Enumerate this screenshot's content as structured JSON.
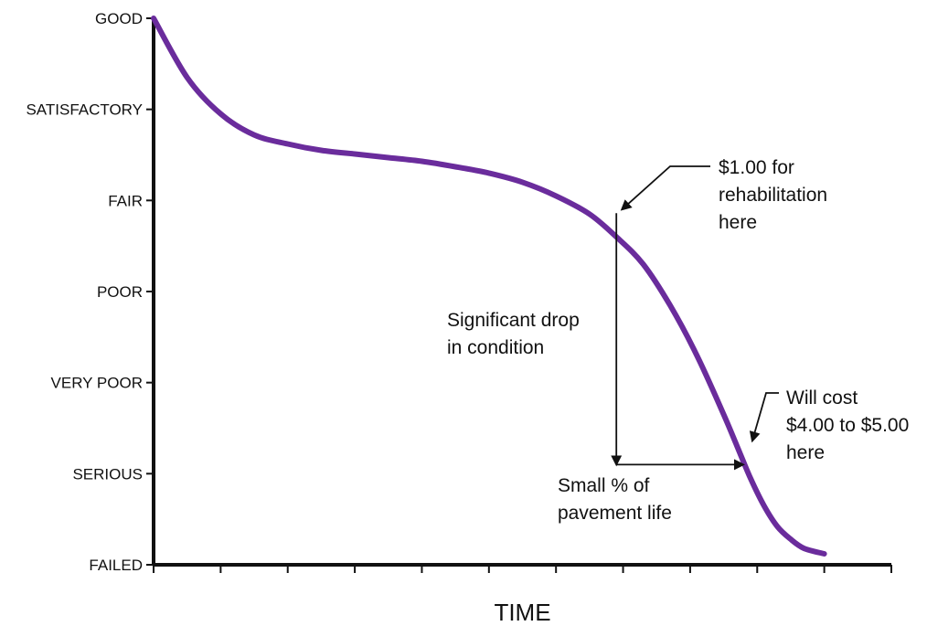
{
  "chart_data": {
    "type": "line",
    "title": "",
    "xlabel": "TIME",
    "ylabel": "",
    "y_categories": [
      "FAILED",
      "SERIOUS",
      "VERY POOR",
      "POOR",
      "FAIR",
      "SATISFACTORY",
      "GOOD"
    ],
    "ylim": [
      0,
      6
    ],
    "xlim": [
      0,
      11
    ],
    "x_tick_count": 12,
    "grid": false,
    "legend": "none",
    "line_color": "#6a2c9c",
    "series": [
      {
        "x": [
          0,
          0.5,
          1,
          1.5,
          2,
          2.5,
          3,
          3.5,
          4,
          4.5,
          5,
          5.5,
          6,
          6.5,
          6.9,
          7.3,
          7.7,
          8.1,
          8.5,
          8.7,
          8.9,
          9.1,
          9.3,
          9.5,
          9.7,
          10
        ],
        "y": [
          6,
          5.35,
          4.95,
          4.72,
          4.62,
          4.55,
          4.51,
          4.47,
          4.43,
          4.37,
          4.3,
          4.2,
          4.05,
          3.85,
          3.6,
          3.3,
          2.85,
          2.3,
          1.65,
          1.3,
          0.95,
          0.65,
          0.42,
          0.28,
          0.18,
          0.12
        ]
      }
    ],
    "annotations": [
      {
        "id": "rehab",
        "lines": [
          "$1.00 for",
          "rehabilitation",
          "here"
        ],
        "point_x": 6.9,
        "point_y": 3.86
      },
      {
        "id": "drop",
        "lines": [
          "Significant drop",
          "in condition"
        ],
        "from_y": 3.86,
        "to_y": 1.1
      },
      {
        "id": "life",
        "lines": [
          "Small % of",
          "pavement life"
        ],
        "from_x": 6.9,
        "to_x": 8.9
      },
      {
        "id": "cost",
        "lines": [
          "Will cost",
          "$4.00 to $5.00",
          "here"
        ],
        "point_x": 8.9,
        "point_y": 1.2
      }
    ]
  }
}
